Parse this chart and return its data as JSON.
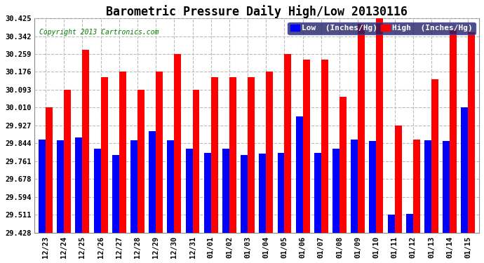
{
  "title": "Barometric Pressure Daily High/Low 20130116",
  "copyright": "Copyright 2013 Cartronics.com",
  "legend_low": "Low  (Inches/Hg)",
  "legend_high": "High  (Inches/Hg)",
  "dates": [
    "12/23",
    "12/24",
    "12/25",
    "12/26",
    "12/27",
    "12/28",
    "12/29",
    "12/30",
    "12/31",
    "01/01",
    "01/02",
    "01/03",
    "01/04",
    "01/05",
    "01/06",
    "01/07",
    "01/08",
    "01/09",
    "01/10",
    "01/11",
    "01/12",
    "01/13",
    "01/14",
    "01/15"
  ],
  "low_values": [
    29.862,
    29.858,
    29.872,
    29.82,
    29.79,
    29.858,
    29.9,
    29.858,
    29.82,
    29.8,
    29.82,
    29.79,
    29.795,
    29.8,
    29.968,
    29.8,
    29.82,
    29.862,
    29.855,
    29.511,
    29.515,
    29.858,
    29.855,
    30.01
  ],
  "high_values": [
    30.01,
    30.093,
    30.28,
    30.15,
    30.176,
    30.093,
    30.176,
    30.259,
    30.093,
    30.15,
    30.15,
    30.15,
    30.176,
    30.259,
    30.232,
    30.232,
    30.06,
    30.4,
    30.425,
    29.927,
    29.86,
    30.142,
    30.37,
    30.36
  ],
  "ylim_min": 29.428,
  "ylim_max": 30.425,
  "yticks": [
    29.428,
    29.511,
    29.594,
    29.678,
    29.761,
    29.844,
    29.927,
    30.01,
    30.093,
    30.176,
    30.259,
    30.342,
    30.425
  ],
  "bar_width": 0.38,
  "low_color": "#0000ff",
  "high_color": "#ff0000",
  "bg_color": "#ffffff",
  "grid_color": "#bbbbbb",
  "title_fontsize": 12,
  "copyright_fontsize": 7,
  "tick_fontsize": 7.5,
  "legend_fontsize": 8
}
